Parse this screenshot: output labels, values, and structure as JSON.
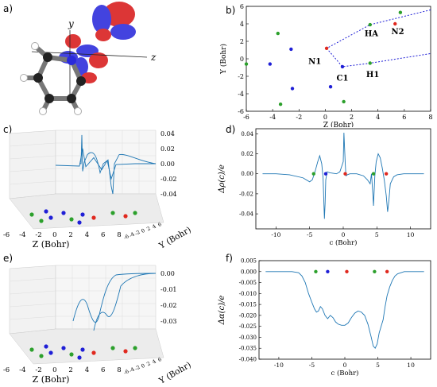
{
  "panel_labels": {
    "a": "a)",
    "b": "b)",
    "c": "c)",
    "d": "d)",
    "e": "e)",
    "f": "f)"
  },
  "molecule": {
    "axis_y": "y",
    "axis_z": "z"
  },
  "colors": {
    "line": "#1f77b4",
    "green": "#2ca02c",
    "blue": "#1f1fd6",
    "red": "#e0281e",
    "orbital_red": "#d81b1b",
    "orbital_blue": "#2a2adb"
  },
  "chart_data": [
    {
      "id": "b",
      "type": "scatter",
      "xlabel": "Z (Bohr)",
      "ylabel": "Y (Bohr)",
      "xlim": [
        -6,
        8
      ],
      "ylim": [
        -6,
        6
      ],
      "xticks": [
        "-6",
        "-4",
        "-2",
        "0",
        "2",
        "4",
        "6",
        "8"
      ],
      "yticks": [
        "-6",
        "-4",
        "-2",
        "0",
        "2",
        "4",
        "6"
      ],
      "series": [
        {
          "color": "green",
          "points": [
            [
              -6,
              -0.6
            ],
            [
              -3.6,
              2.9
            ],
            [
              -3.4,
              -5.2
            ],
            [
              1.4,
              -4.9
            ],
            [
              3.4,
              3.9
            ],
            [
              3.4,
              -0.5
            ],
            [
              5.7,
              5.3
            ]
          ]
        },
        {
          "color": "blue",
          "points": [
            [
              -2.6,
              1.1
            ],
            [
              -4.2,
              -0.6
            ],
            [
              -2.5,
              -3.4
            ],
            [
              0.4,
              -3.2
            ],
            [
              1.3,
              -0.9
            ]
          ]
        },
        {
          "color": "red",
          "points": [
            [
              0.1,
              1.2
            ],
            [
              5.3,
              4.0
            ]
          ]
        }
      ],
      "annotations": [
        {
          "text": "N1",
          "x": -0.8,
          "y": -0.6
        },
        {
          "text": "HA",
          "x": 3.5,
          "y": 2.6
        },
        {
          "text": "N2",
          "x": 5.5,
          "y": 2.8
        },
        {
          "text": "C1",
          "x": 1.3,
          "y": -2.5
        },
        {
          "text": "H1",
          "x": 3.6,
          "y": -2.1
        }
      ],
      "dashed_path": [
        [
          3.4,
          3.9
        ],
        [
          0.1,
          1.2
        ],
        [
          1.3,
          -0.9
        ],
        [
          3.4,
          -0.5
        ],
        [
          8,
          0.6
        ]
      ],
      "dashed_path_upper_end": [
        8,
        5.6
      ]
    },
    {
      "id": "c",
      "type": "line",
      "projection": "3d",
      "xlabel": "Z (Bohr)",
      "ylabel": "Y (Bohr)",
      "xticks": [
        "-6",
        "-4",
        "-2",
        "0",
        "2",
        "4",
        "6",
        "8"
      ],
      "yticks": [
        "-6",
        "-4",
        "-2",
        "0",
        "2",
        "4",
        "6"
      ],
      "zticks": [
        "0.04",
        "0.02",
        "0.00",
        "-0.02",
        "-0.04"
      ],
      "zlim": [
        -0.04,
        0.04
      ]
    },
    {
      "id": "d",
      "type": "line",
      "xlabel": "c (Bohr)",
      "ylabel": "Δρ(c)/e",
      "xlim": [
        -13,
        13
      ],
      "ylim": [
        -0.055,
        0.045
      ],
      "xticks": [
        "-10",
        "-5",
        "0",
        "5",
        "10"
      ],
      "yticks": [
        "0.04",
        "0.02",
        "0.00",
        "-0.02",
        "-0.04"
      ],
      "x": [
        -12,
        -10,
        -8,
        -6,
        -5,
        -4.6,
        -4.2,
        -3.8,
        -3.5,
        -3.2,
        -3,
        -2.9,
        -2.8,
        -2.7,
        -2.6,
        -2.4,
        -2,
        -1,
        -0.5,
        0,
        0.1,
        0.3,
        0.4,
        0.6,
        1,
        2,
        3,
        3.6,
        4,
        4.2,
        4.4,
        4.5,
        4.7,
        4.9,
        5.2,
        5.5,
        5.8,
        6.1,
        6.4,
        6.6,
        6.8,
        7,
        7.5,
        8,
        9,
        10,
        11,
        12
      ],
      "y": [
        0,
        0,
        -0.001,
        -0.004,
        -0.008,
        -0.006,
        0.002,
        0.012,
        0.018,
        0.01,
        -0.004,
        -0.025,
        -0.045,
        -0.03,
        -0.006,
        0.002,
        0.001,
        0,
        0.002,
        0.012,
        0.041,
        0.01,
        -0.002,
        -0.001,
        0,
        0,
        -0.002,
        -0.006,
        -0.01,
        0,
        -0.02,
        -0.032,
        -0.002,
        0.012,
        0.02,
        0.016,
        0.006,
        -0.006,
        -0.022,
        -0.038,
        -0.026,
        -0.01,
        -0.003,
        -0.001,
        0,
        0,
        0,
        0
      ],
      "markers": [
        {
          "x": -4.4,
          "y": 0,
          "color": "green"
        },
        {
          "x": -2.6,
          "y": 0,
          "color": "blue"
        },
        {
          "x": 0.3,
          "y": 0,
          "color": "red"
        },
        {
          "x": 4.5,
          "y": 0,
          "color": "green"
        },
        {
          "x": 6.4,
          "y": 0,
          "color": "red"
        }
      ]
    },
    {
      "id": "e",
      "type": "line",
      "projection": "3d",
      "xlabel": "Z (Bohr)",
      "ylabel": "Y (Bohr)",
      "xticks": [
        "-6",
        "-4",
        "-2",
        "0",
        "2",
        "4",
        "6",
        "8"
      ],
      "yticks": [
        "-6",
        "-4",
        "-2",
        "0",
        "2",
        "4",
        "6"
      ],
      "zticks": [
        "0.00",
        "-0.01",
        "-0.02",
        "-0.03"
      ],
      "zlim": [
        -0.035,
        0.003
      ]
    },
    {
      "id": "f",
      "type": "line",
      "xlabel": "c (Bohr)",
      "ylabel": "Δα(c)/e",
      "xlim": [
        -13,
        13
      ],
      "ylim": [
        -0.04,
        0.005
      ],
      "xticks": [
        "-10",
        "-5",
        "0",
        "5",
        "10"
      ],
      "yticks": [
        "0.005",
        "0.000",
        "-0.005",
        "-0.010",
        "-0.015",
        "-0.020",
        "-0.025",
        "-0.030",
        "-0.035",
        "-0.040"
      ],
      "x": [
        -12,
        -10,
        -8,
        -7,
        -6.5,
        -6,
        -5.5,
        -5,
        -4.6,
        -4.3,
        -4,
        -3.7,
        -3.4,
        -3,
        -2.6,
        -2.2,
        -1.8,
        -1.4,
        -1,
        -0.5,
        0,
        0.5,
        1,
        1.5,
        2,
        2.5,
        3,
        3.5,
        4,
        4.3,
        4.6,
        4.9,
        5.2,
        5.5,
        5.8,
        6.1,
        6.4,
        6.8,
        7.2,
        7.6,
        8,
        9,
        10,
        11,
        12
      ],
      "y": [
        0,
        0,
        0,
        -0.0005,
        -0.002,
        -0.005,
        -0.01,
        -0.014,
        -0.017,
        -0.0185,
        -0.018,
        -0.016,
        -0.017,
        -0.02,
        -0.0215,
        -0.02,
        -0.021,
        -0.023,
        -0.024,
        -0.0245,
        -0.0245,
        -0.0235,
        -0.021,
        -0.019,
        -0.018,
        -0.0185,
        -0.02,
        -0.024,
        -0.03,
        -0.034,
        -0.035,
        -0.033,
        -0.028,
        -0.025,
        -0.022,
        -0.016,
        -0.011,
        -0.007,
        -0.004,
        -0.002,
        -0.001,
        0,
        0,
        0,
        0
      ],
      "markers": [
        {
          "x": -4.4,
          "y": 0,
          "color": "green"
        },
        {
          "x": -2.6,
          "y": 0,
          "color": "blue"
        },
        {
          "x": 0.3,
          "y": 0,
          "color": "red"
        },
        {
          "x": 4.5,
          "y": 0,
          "color": "green"
        },
        {
          "x": 6.4,
          "y": 0,
          "color": "red"
        }
      ]
    }
  ]
}
